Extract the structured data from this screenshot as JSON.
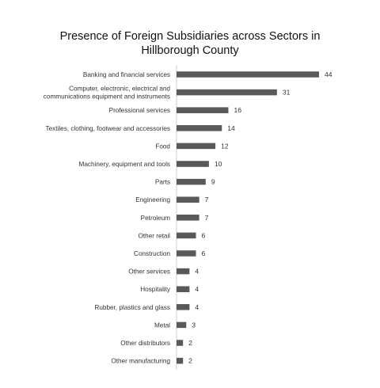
{
  "chart_data": {
    "type": "bar",
    "orientation": "horizontal",
    "title_lines": [
      "Presence of Foreign Subsidiaries across Sectors in",
      "Hillborough County"
    ],
    "categories": [
      [
        "Banking and financial services"
      ],
      [
        "Computer, electronic, electrical  and",
        "communications  equipment  and instruments"
      ],
      [
        "Professional services"
      ],
      [
        "Textiles,  clothing, footwear and accessories"
      ],
      [
        "Food"
      ],
      [
        "Machinery, equipment  and tools"
      ],
      [
        "Parts"
      ],
      [
        "Engineering"
      ],
      [
        "Petroleum"
      ],
      [
        "Other retail"
      ],
      [
        "Construction"
      ],
      [
        "Other services"
      ],
      [
        "Hospitality"
      ],
      [
        "Rubber, plastics and glass"
      ],
      [
        "Metal"
      ],
      [
        "Other distributors"
      ],
      [
        "Other manufacturing"
      ]
    ],
    "values": [
      44,
      31,
      16,
      14,
      12,
      10,
      9,
      7,
      7,
      6,
      6,
      4,
      4,
      4,
      3,
      2,
      2
    ],
    "xlim": [
      0,
      44
    ],
    "bar_color": "#595959",
    "grid": false,
    "legend": "none",
    "data_labels": true
  }
}
